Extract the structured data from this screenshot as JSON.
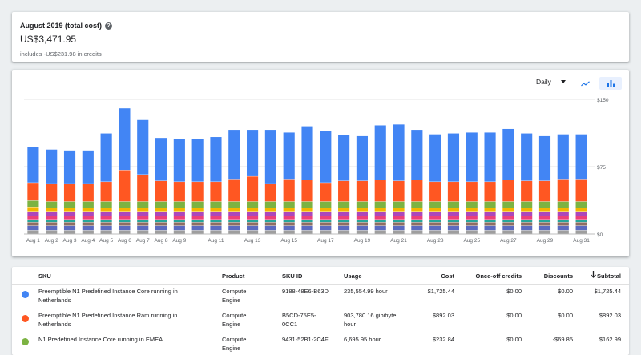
{
  "summary": {
    "title": "August 2019 (total cost)",
    "total": "US$3,471.95",
    "credits": "includes -US$231.98 in credits"
  },
  "controls": {
    "range": "Daily",
    "view_icons": [
      "line-chart-icon",
      "bar-chart-icon"
    ],
    "selected_view": "bar"
  },
  "colors": {
    "primary": "#4285f4",
    "secondary": "#ff5722",
    "tertiary": "#7cb342"
  },
  "chart_data": {
    "type": "bar",
    "stacked": true,
    "ylim": [
      0,
      150
    ],
    "yticks": [
      {
        "value": 0,
        "label": "$0"
      },
      {
        "value": 75,
        "label": "$75"
      },
      {
        "value": 150,
        "label": "$150"
      }
    ],
    "grid": true,
    "categories": [
      "Aug 1",
      "Aug 2",
      "Aug 3",
      "Aug 4",
      "Aug 5",
      "Aug 6",
      "Aug 7",
      "Aug 8",
      "Aug 9",
      "Aug 10",
      "Aug 11",
      "Aug 12",
      "Aug 13",
      "Aug 14",
      "Aug 15",
      "Aug 16",
      "Aug 17",
      "Aug 18",
      "Aug 19",
      "Aug 20",
      "Aug 21",
      "Aug 22",
      "Aug 23",
      "Aug 24",
      "Aug 25",
      "Aug 26",
      "Aug 27",
      "Aug 28",
      "Aug 29",
      "Aug 30",
      "Aug 31"
    ],
    "tick_labels": [
      "Aug 1",
      "Aug 2",
      "Aug 3",
      "Aug 4",
      "Aug 5",
      "Aug 6",
      "Aug 7",
      "Aug 8",
      "Aug 9",
      "",
      "Aug 11",
      "",
      "Aug 13",
      "",
      "Aug 15",
      "",
      "Aug 17",
      "",
      "Aug 19",
      "",
      "Aug 21",
      "",
      "Aug 23",
      "",
      "Aug 25",
      "",
      "Aug 27",
      "",
      "Aug 29",
      "",
      "Aug 31"
    ],
    "series": [
      {
        "name": "Preemptible N1 Predefined Instance Core running in Netherlands",
        "color": "#4285f4",
        "values": [
          40,
          38,
          37,
          37,
          54,
          69,
          61,
          48,
          48,
          48,
          50,
          55,
          52,
          60,
          52,
          60,
          58,
          51,
          50,
          61,
          63,
          56,
          53,
          54,
          55,
          55,
          57,
          53,
          50,
          50,
          50
        ]
      },
      {
        "name": "Preemptible N1 Predefined Instance Ram running in Netherlands",
        "color": "#ff5722",
        "values": [
          20,
          20,
          20,
          20,
          22,
          35,
          30,
          23,
          22,
          22,
          22,
          25,
          28,
          20,
          25,
          24,
          21,
          23,
          23,
          24,
          23,
          24,
          22,
          22,
          22,
          22,
          24,
          23,
          23,
          25,
          25
        ]
      },
      {
        "name": "N1 Predefined Instance Core running in EMEA",
        "color": "#7cb342",
        "values": [
          7,
          7,
          7,
          7,
          7,
          7,
          7,
          7,
          7,
          7,
          7,
          7,
          7,
          7,
          7,
          7,
          7,
          7,
          7,
          7,
          7,
          7,
          7,
          7,
          7,
          7,
          7,
          7,
          7,
          7,
          7
        ]
      },
      {
        "name": "",
        "color": "#f4b400",
        "values": [
          5,
          4,
          4,
          4,
          4,
          4,
          4,
          4,
          4,
          4,
          4,
          4,
          4,
          4,
          4,
          4,
          4,
          4,
          4,
          4,
          4,
          4,
          4,
          4,
          4,
          4,
          4,
          4,
          4,
          4,
          4
        ]
      },
      {
        "name": "",
        "color": "#ab47bc",
        "values": [
          5,
          5,
          5,
          5,
          5,
          5,
          5,
          5,
          5,
          5,
          5,
          5,
          5,
          5,
          5,
          5,
          5,
          5,
          5,
          5,
          5,
          5,
          5,
          5,
          5,
          5,
          5,
          5,
          5,
          5,
          5
        ]
      },
      {
        "name": "",
        "color": "#ec407a",
        "values": [
          4,
          4,
          4,
          4,
          4,
          4,
          4,
          4,
          4,
          4,
          4,
          4,
          4,
          4,
          4,
          4,
          4,
          4,
          4,
          4,
          4,
          4,
          4,
          4,
          4,
          4,
          4,
          4,
          4,
          4,
          4
        ]
      },
      {
        "name": "",
        "color": "#26a69a",
        "values": [
          3,
          3,
          3,
          3,
          3,
          3,
          3,
          3,
          3,
          3,
          3,
          3,
          3,
          3,
          3,
          3,
          3,
          3,
          3,
          3,
          3,
          3,
          3,
          3,
          3,
          3,
          3,
          3,
          3,
          3,
          3
        ]
      },
      {
        "name": "",
        "color": "#8d6e63",
        "values": [
          4,
          4,
          4,
          4,
          4,
          4,
          4,
          4,
          4,
          4,
          4,
          4,
          4,
          4,
          4,
          4,
          4,
          4,
          4,
          4,
          4,
          4,
          4,
          4,
          4,
          4,
          4,
          4,
          4,
          4,
          4
        ]
      },
      {
        "name": "",
        "color": "#5c6bc0",
        "values": [
          5,
          5,
          5,
          5,
          5,
          5,
          5,
          5,
          5,
          5,
          5,
          5,
          5,
          5,
          5,
          5,
          5,
          5,
          5,
          5,
          5,
          5,
          5,
          5,
          5,
          5,
          5,
          5,
          5,
          5,
          5
        ]
      },
      {
        "name": "",
        "color": "#9e9e9e",
        "values": [
          4,
          4,
          4,
          4,
          4,
          4,
          4,
          4,
          4,
          4,
          4,
          4,
          4,
          4,
          4,
          4,
          4,
          4,
          4,
          4,
          4,
          4,
          4,
          4,
          4,
          4,
          4,
          4,
          4,
          4,
          4
        ]
      }
    ]
  },
  "table": {
    "headers": {
      "sku": "SKU",
      "product": "Product",
      "sku_id": "SKU ID",
      "usage": "Usage",
      "cost": "Cost",
      "credits": "Once-off credits",
      "discounts": "Discounts",
      "subtotal": "Subtotal"
    },
    "sort_icon": "arrow-down-icon",
    "rows": [
      {
        "color": "#4285f4",
        "sku_line1": "Preemptible N1 Predefined Instance Core running in",
        "sku_line2": "Netherlands",
        "product_line1": "Compute",
        "product_line2": "Engine",
        "sku_id_line1": "9188-48E6-B63D",
        "sku_id_line2": "",
        "usage_line1": "235,554.99 hour",
        "usage_line2": "",
        "cost": "$1,725.44",
        "credits": "$0.00",
        "discounts": "$0.00",
        "subtotal": "$1,725.44"
      },
      {
        "color": "#ff5722",
        "sku_line1": "Preemptible N1 Predefined Instance Ram running in",
        "sku_line2": "Netherlands",
        "product_line1": "Compute",
        "product_line2": "Engine",
        "sku_id_line1": "B5CD-75E5-",
        "sku_id_line2": "0CC1",
        "usage_line1": "903,780.16 gibibyte",
        "usage_line2": "hour",
        "cost": "$892.03",
        "credits": "$0.00",
        "discounts": "$0.00",
        "subtotal": "$892.03"
      },
      {
        "color": "#7cb342",
        "sku_line1": "N1 Predefined Instance Core running in EMEA",
        "sku_line2": "",
        "product_line1": "Compute",
        "product_line2": "Engine",
        "sku_id_line1": "9431-52B1-2C4F",
        "sku_id_line2": "",
        "usage_line1": "6,695.95 hour",
        "usage_line2": "",
        "cost": "$232.84",
        "credits": "$0.00",
        "discounts": "-$69.85",
        "subtotal": "$162.99"
      }
    ]
  }
}
